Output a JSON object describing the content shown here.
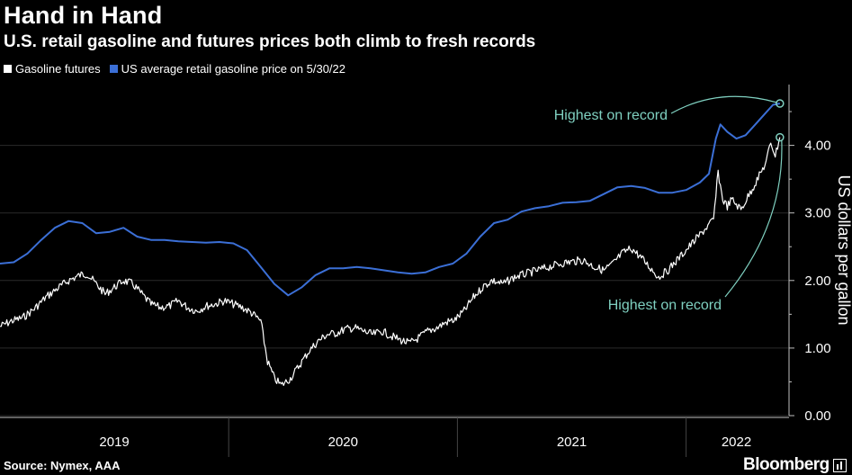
{
  "title": "Hand in Hand",
  "subtitle": "U.S. retail gasoline and futures prices both climb to fresh records",
  "source": "Source: Nymex, AAA",
  "brand": "Bloomberg",
  "colors": {
    "background": "#000000",
    "futures": "#ffffff",
    "retail": "#3b6fd6",
    "annotation": "#7fd0c0",
    "axis": "#bfbfbf"
  },
  "chart_data": {
    "type": "line",
    "title": "Hand in Hand",
    "ylabel": "US dollars per gallon",
    "xlabel": "",
    "ylim": [
      0,
      4.9
    ],
    "xlim": [
      2019.0,
      2022.45
    ],
    "yticks": [
      {
        "value": 0,
        "label": "0.00"
      },
      {
        "value": 1,
        "label": "1.00"
      },
      {
        "value": 2,
        "label": "2.00"
      },
      {
        "value": 3,
        "label": "3.00"
      },
      {
        "value": 4,
        "label": "4.00"
      }
    ],
    "xticks": [
      {
        "label": "2019",
        "center": 2019.5
      },
      {
        "label": "2020",
        "center": 2020.5
      },
      {
        "label": "2021",
        "center": 2021.5
      },
      {
        "label": "2022",
        "center": 2022.22
      }
    ],
    "xdividers": [
      2020.0,
      2021.0,
      2022.0
    ],
    "legend": [
      {
        "name": "Gasoline futures",
        "color": "#ffffff"
      },
      {
        "name": "US average retail gasoline price on 5/30/22",
        "color": "#3b6fd6"
      }
    ],
    "series": [
      {
        "name": "Gasoline futures",
        "color": "#ffffff",
        "points": [
          [
            2019.0,
            1.32
          ],
          [
            2019.05,
            1.4
          ],
          [
            2019.1,
            1.45
          ],
          [
            2019.15,
            1.58
          ],
          [
            2019.2,
            1.75
          ],
          [
            2019.25,
            1.88
          ],
          [
            2019.3,
            2.0
          ],
          [
            2019.35,
            2.08
          ],
          [
            2019.38,
            2.1
          ],
          [
            2019.42,
            1.95
          ],
          [
            2019.46,
            1.8
          ],
          [
            2019.5,
            1.9
          ],
          [
            2019.54,
            2.0
          ],
          [
            2019.58,
            1.95
          ],
          [
            2019.62,
            1.8
          ],
          [
            2019.66,
            1.65
          ],
          [
            2019.7,
            1.6
          ],
          [
            2019.74,
            1.62
          ],
          [
            2019.78,
            1.7
          ],
          [
            2019.82,
            1.6
          ],
          [
            2019.86,
            1.55
          ],
          [
            2019.9,
            1.62
          ],
          [
            2019.94,
            1.65
          ],
          [
            2019.98,
            1.7
          ],
          [
            2020.02,
            1.65
          ],
          [
            2020.06,
            1.6
          ],
          [
            2020.1,
            1.52
          ],
          [
            2020.14,
            1.4
          ],
          [
            2020.17,
            0.8
          ],
          [
            2020.2,
            0.55
          ],
          [
            2020.23,
            0.45
          ],
          [
            2020.27,
            0.55
          ],
          [
            2020.31,
            0.75
          ],
          [
            2020.35,
            0.95
          ],
          [
            2020.39,
            1.1
          ],
          [
            2020.43,
            1.2
          ],
          [
            2020.47,
            1.22
          ],
          [
            2020.51,
            1.28
          ],
          [
            2020.55,
            1.3
          ],
          [
            2020.59,
            1.25
          ],
          [
            2020.63,
            1.2
          ],
          [
            2020.67,
            1.25
          ],
          [
            2020.71,
            1.18
          ],
          [
            2020.75,
            1.12
          ],
          [
            2020.79,
            1.07
          ],
          [
            2020.83,
            1.15
          ],
          [
            2020.87,
            1.25
          ],
          [
            2020.91,
            1.3
          ],
          [
            2020.95,
            1.38
          ],
          [
            2020.99,
            1.42
          ],
          [
            2021.03,
            1.55
          ],
          [
            2021.07,
            1.75
          ],
          [
            2021.11,
            1.9
          ],
          [
            2021.15,
            2.0
          ],
          [
            2021.2,
            1.95
          ],
          [
            2021.25,
            2.05
          ],
          [
            2021.3,
            2.1
          ],
          [
            2021.35,
            2.15
          ],
          [
            2021.4,
            2.2
          ],
          [
            2021.45,
            2.25
          ],
          [
            2021.5,
            2.28
          ],
          [
            2021.55,
            2.3
          ],
          [
            2021.6,
            2.2
          ],
          [
            2021.64,
            2.15
          ],
          [
            2021.68,
            2.25
          ],
          [
            2021.72,
            2.4
          ],
          [
            2021.76,
            2.48
          ],
          [
            2021.8,
            2.35
          ],
          [
            2021.84,
            2.2
          ],
          [
            2021.88,
            2.05
          ],
          [
            2021.92,
            2.15
          ],
          [
            2021.96,
            2.3
          ],
          [
            2022.0,
            2.45
          ],
          [
            2022.04,
            2.6
          ],
          [
            2022.08,
            2.75
          ],
          [
            2022.12,
            2.9
          ],
          [
            2022.14,
            3.6
          ],
          [
            2022.16,
            3.2
          ],
          [
            2022.18,
            3.1
          ],
          [
            2022.2,
            3.2
          ],
          [
            2022.24,
            3.05
          ],
          [
            2022.28,
            3.3
          ],
          [
            2022.32,
            3.55
          ],
          [
            2022.35,
            3.75
          ],
          [
            2022.37,
            4.05
          ],
          [
            2022.39,
            3.85
          ],
          [
            2022.41,
            4.12
          ]
        ]
      },
      {
        "name": "US average retail gasoline price on 5/30/22",
        "color": "#3b6fd6",
        "points": [
          [
            2019.0,
            2.25
          ],
          [
            2019.06,
            2.27
          ],
          [
            2019.12,
            2.4
          ],
          [
            2019.18,
            2.6
          ],
          [
            2019.24,
            2.78
          ],
          [
            2019.3,
            2.88
          ],
          [
            2019.36,
            2.85
          ],
          [
            2019.42,
            2.7
          ],
          [
            2019.48,
            2.72
          ],
          [
            2019.54,
            2.78
          ],
          [
            2019.6,
            2.65
          ],
          [
            2019.66,
            2.6
          ],
          [
            2019.72,
            2.6
          ],
          [
            2019.78,
            2.58
          ],
          [
            2019.84,
            2.57
          ],
          [
            2019.9,
            2.56
          ],
          [
            2019.96,
            2.57
          ],
          [
            2020.02,
            2.55
          ],
          [
            2020.08,
            2.45
          ],
          [
            2020.14,
            2.2
          ],
          [
            2020.2,
            1.95
          ],
          [
            2020.26,
            1.78
          ],
          [
            2020.32,
            1.9
          ],
          [
            2020.38,
            2.08
          ],
          [
            2020.44,
            2.18
          ],
          [
            2020.5,
            2.18
          ],
          [
            2020.56,
            2.2
          ],
          [
            2020.62,
            2.18
          ],
          [
            2020.68,
            2.15
          ],
          [
            2020.74,
            2.12
          ],
          [
            2020.8,
            2.1
          ],
          [
            2020.86,
            2.12
          ],
          [
            2020.92,
            2.2
          ],
          [
            2020.98,
            2.25
          ],
          [
            2021.04,
            2.4
          ],
          [
            2021.1,
            2.65
          ],
          [
            2021.16,
            2.85
          ],
          [
            2021.22,
            2.9
          ],
          [
            2021.28,
            3.02
          ],
          [
            2021.34,
            3.07
          ],
          [
            2021.4,
            3.1
          ],
          [
            2021.46,
            3.15
          ],
          [
            2021.52,
            3.16
          ],
          [
            2021.58,
            3.18
          ],
          [
            2021.64,
            3.28
          ],
          [
            2021.7,
            3.38
          ],
          [
            2021.76,
            3.4
          ],
          [
            2021.82,
            3.37
          ],
          [
            2021.88,
            3.3
          ],
          [
            2021.94,
            3.3
          ],
          [
            2022.0,
            3.34
          ],
          [
            2022.06,
            3.45
          ],
          [
            2022.1,
            3.58
          ],
          [
            2022.13,
            4.1
          ],
          [
            2022.15,
            4.31
          ],
          [
            2022.18,
            4.2
          ],
          [
            2022.22,
            4.1
          ],
          [
            2022.26,
            4.15
          ],
          [
            2022.3,
            4.3
          ],
          [
            2022.34,
            4.45
          ],
          [
            2022.38,
            4.6
          ],
          [
            2022.41,
            4.62
          ]
        ]
      }
    ],
    "annotations": [
      {
        "text": "Highest on record",
        "target_series": "US average retail gasoline price on 5/30/22",
        "target": [
          2022.41,
          4.62
        ]
      },
      {
        "text": "Highest on record",
        "target_series": "Gasoline futures",
        "target": [
          2022.41,
          4.12
        ]
      }
    ]
  }
}
